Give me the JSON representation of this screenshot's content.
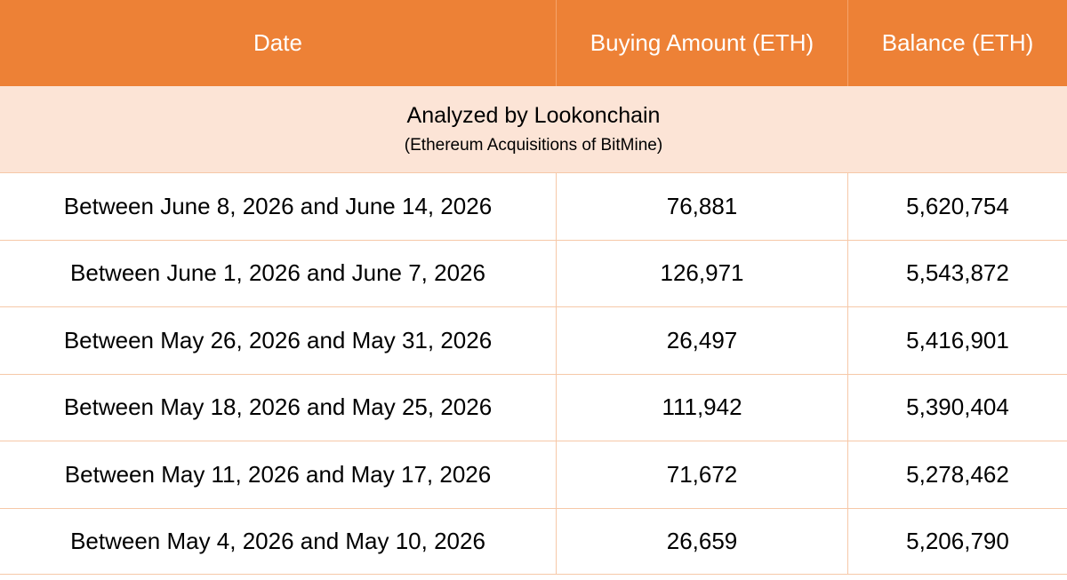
{
  "colors": {
    "header_bg": "#ED8136",
    "header_text": "#FFFFFF",
    "subheader_bg": "#FCE4D6",
    "grid_line": "#F6C8A8"
  },
  "header": {
    "date": "Date",
    "buying_amount": "Buying Amount (ETH)",
    "balance": "Balance (ETH)"
  },
  "subheader": {
    "title": "Analyzed by Lookonchain",
    "subtitle": "(Ethereum Acquisitions of BitMine)"
  },
  "rows": [
    {
      "date": "Between June 8, 2026 and June 14, 2026",
      "buying_amount": "76,881",
      "balance": "5,620,754"
    },
    {
      "date": "Between June 1, 2026 and June 7, 2026",
      "buying_amount": "126,971",
      "balance": "5,543,872"
    },
    {
      "date": "Between May 26, 2026 and May 31, 2026",
      "buying_amount": "26,497",
      "balance": "5,416,901"
    },
    {
      "date": "Between May 18, 2026 and May 25, 2026",
      "buying_amount": "111,942",
      "balance": "5,390,404"
    },
    {
      "date": "Between May 11, 2026 and May 17, 2026",
      "buying_amount": "71,672",
      "balance": "5,278,462"
    },
    {
      "date": "Between May 4, 2026 and May 10, 2026",
      "buying_amount": "26,659",
      "balance": "5,206,790"
    }
  ]
}
